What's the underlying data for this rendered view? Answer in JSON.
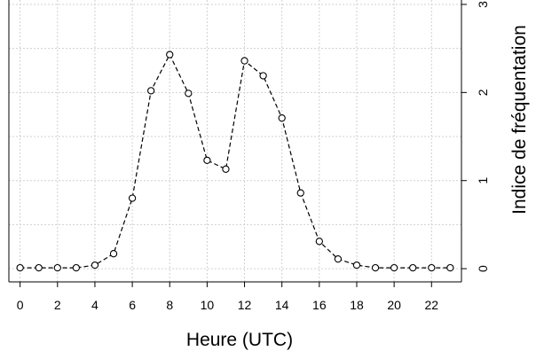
{
  "chart_data": {
    "type": "line",
    "title": "",
    "xlabel": "Heure (UTC)",
    "ylabel": "Indice de fréquentation",
    "x_ticks": [
      0,
      2,
      4,
      6,
      8,
      10,
      12,
      14,
      16,
      18,
      20,
      22
    ],
    "x_tick_labels": [
      "0",
      "2",
      "4",
      "6",
      "8",
      "10",
      "12",
      "14",
      "16",
      "18",
      "20",
      "22"
    ],
    "y_ticks": [
      0,
      1,
      2,
      3
    ],
    "y_tick_labels": [
      "0",
      "1",
      "2",
      "3"
    ],
    "y_axis_side": "right",
    "xlim": [
      -0.6,
      23.6
    ],
    "ylim": [
      -0.15,
      3.05
    ],
    "grid": true,
    "line_style": "dashed",
    "marker": "open-circle",
    "series": [
      {
        "x": [
          0,
          1,
          2,
          3,
          4,
          5,
          6,
          7,
          8,
          9,
          10,
          11,
          12,
          13,
          14,
          15,
          16,
          17,
          18,
          19,
          20,
          21,
          22,
          23
        ],
        "values": [
          0.01,
          0.01,
          0.01,
          0.01,
          0.04,
          0.17,
          0.8,
          2.02,
          2.43,
          1.99,
          1.23,
          1.13,
          2.36,
          2.19,
          1.71,
          0.86,
          0.31,
          0.11,
          0.04,
          0.01,
          0.01,
          0.01,
          0.01,
          0.01
        ]
      }
    ],
    "colors": {
      "line": "#000000",
      "grid": "#d0d0d0",
      "background": "#ffffff"
    }
  }
}
